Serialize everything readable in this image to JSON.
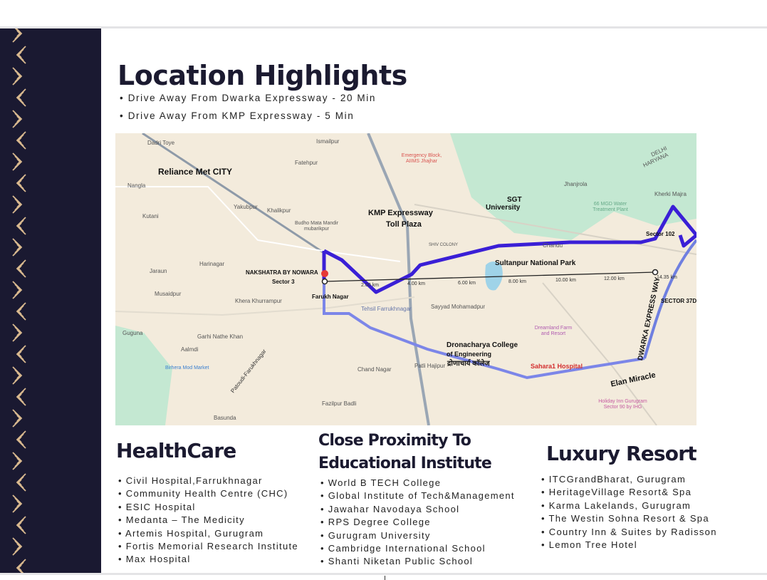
{
  "title": "Location Highlights",
  "highlights": [
    "Drive Away From Dwarka Expressway - 20 Min",
    "Drive Away From KMP Expressway - 5 Min"
  ],
  "colors": {
    "navy": "#1a1931",
    "gold": "#d9b98f",
    "route": "#3a1fd6",
    "map_bg": "#f3ebdc",
    "park": "#bfe6cf"
  },
  "map": {
    "labels": {
      "reliance": "Reliance Met CITY",
      "kmp": "KMP Expressway",
      "kmp2": "Toll Plaza",
      "project": "NAKSHATRA BY NOWARA",
      "project2": "Sector 3",
      "sgt": "SGT",
      "sgt2": "University",
      "sultanpur": "Sultanpur National Park",
      "dronacharya": "Dronacharya College",
      "dronacharya2": "of Engineering",
      "dronacharya3": "द्रोणाचार्य कॉलेज",
      "sahara": "Sahara1 Hospital",
      "elan": "Elan Miracle",
      "dwarka": "DWARKA EXPRESS WAY",
      "sector37d": "SECTOR 37D",
      "sector102": "Sector 102",
      "farukh": "Farukh Nagar",
      "tehsil": "Tehsil Farrukhnagar",
      "emergency": "Emergency Block, AIIMS Jhajhar",
      "water": "66 MGD Water Treatment Plant",
      "dreamland": "Dreamland Farm and Resort",
      "holiday": "Holiday Inn Gurugram Sector 90 by IHG",
      "birhera": "Birhera Mod Market",
      "patoudi": "Patoudi-Farukhnagar",
      "delhi": "DELHI",
      "haryana": "HARYANA",
      "budho": "Budho Mata Mandir mubarikpur",
      "towns": [
        "Dadri Toye",
        "Ismailpur",
        "Fatehpur",
        "Nangla",
        "Yakubpur",
        "Khalikpur",
        "Kutani",
        "Jhanjrola",
        "Kherki Majra",
        "Harinagar",
        "Jaraun",
        "Musaidpur",
        "Khera Khurrampur",
        "Guguna",
        "Garhi Nathe Khan",
        "Aalmdi",
        "Chand Nagar",
        "Patli Hajipur",
        "Fazilpur Badli",
        "Basunda",
        "Sayyad Mohamadpur",
        "Chandu",
        "SHIV COLONY"
      ]
    },
    "distances": [
      "2.00 km",
      "4.00 km",
      "6.00 km",
      "8.00 km",
      "10.00 km",
      "12.00 km",
      "14.35 km"
    ]
  },
  "sections": {
    "healthcare": {
      "heading": "HealthCare",
      "items": [
        "Civil Hospital,Farrukhnagar",
        "Community Health Centre (CHC)",
        "ESIC Hospital",
        "Medanta – The Medicity",
        "Artemis Hospital, Gurugram",
        "Fortis Memorial Research Institute",
        "Max Hospital"
      ]
    },
    "education": {
      "heading_line1": "Close Proximity To",
      "heading_line2": "Educational Institute",
      "items": [
        "World B TECH College",
        "Global Institute of Tech&Management",
        "Jawahar Navodaya School",
        "RPS Degree College",
        "Gurugram University",
        "Cambridge International School",
        "Shanti Niketan Public School"
      ]
    },
    "resort": {
      "heading": "Luxury Resort",
      "items": [
        "ITCGrandBharat, Gurugram",
        "HeritageVillage Resort& Spa",
        "Karma Lakelands, Gurugram",
        "The Westin Sohna Resort & Spa",
        "Country Inn & Suites by Radisson",
        "Lemon Tree Hotel"
      ]
    }
  }
}
